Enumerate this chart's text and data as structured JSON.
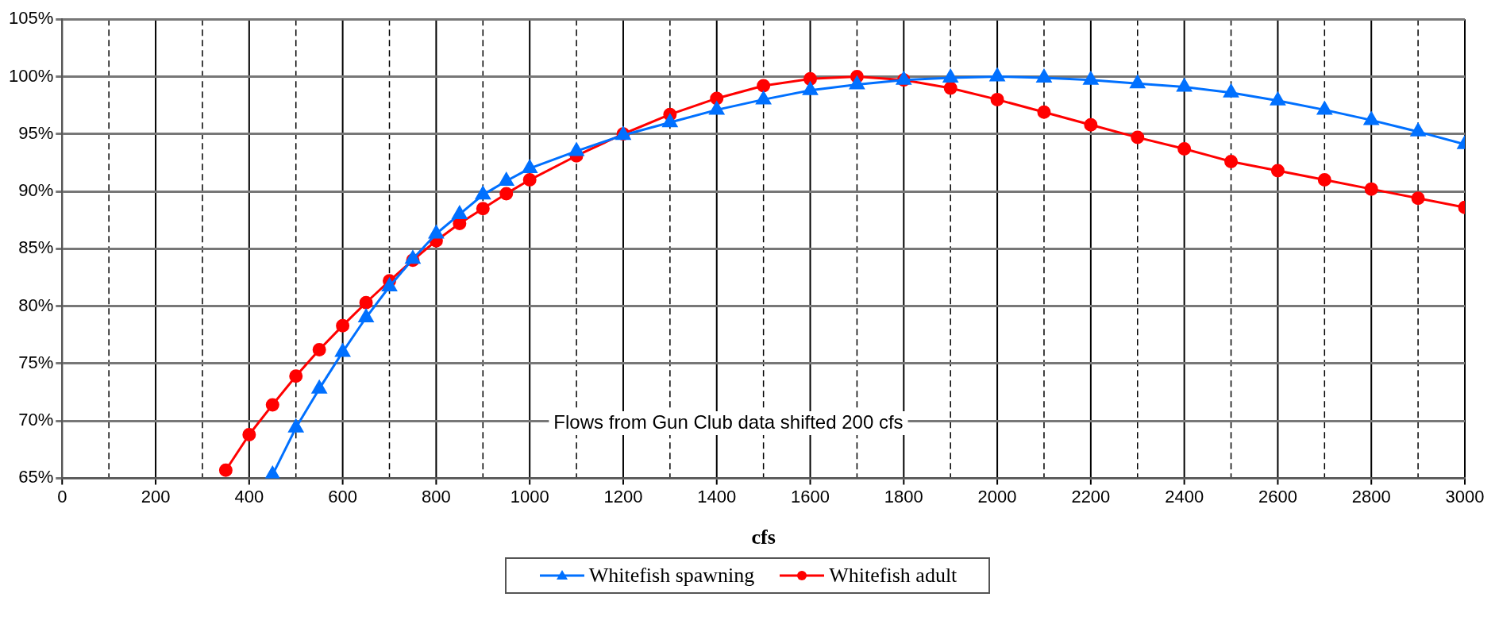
{
  "chart_data": {
    "type": "line",
    "xlabel": "cfs",
    "annotations": [
      "Flows from Gun Club data shifted 200 cfs"
    ],
    "xlim": [
      0,
      3000
    ],
    "xticks": [
      0,
      {
        "value": 100,
        "label": null
      },
      200,
      {
        "value": 300,
        "label": null
      },
      400,
      {
        "value": 500,
        "label": null
      },
      600,
      {
        "value": 700,
        "label": null
      },
      800,
      {
        "value": 900,
        "label": null
      },
      1000,
      {
        "value": 1100,
        "label": null
      },
      1200,
      {
        "value": 1300,
        "label": null
      },
      1400,
      {
        "value": 1500,
        "label": null
      },
      1600,
      {
        "value": 1700,
        "label": null
      },
      1800,
      {
        "value": 1900,
        "label": null
      },
      2000,
      {
        "value": 2100,
        "label": null
      },
      2200,
      {
        "value": 2300,
        "label": null
      },
      2400,
      {
        "value": 2500,
        "label": null
      },
      2600,
      {
        "value": 2700,
        "label": null
      },
      2800,
      {
        "value": 2900,
        "label": null
      },
      3000
    ],
    "ylim": [
      65,
      105
    ],
    "yticks": [
      {
        "value": 65,
        "label": "65%"
      },
      {
        "value": 70,
        "label": "70%"
      },
      {
        "value": 75,
        "label": "75%"
      },
      {
        "value": 80,
        "label": "80%"
      },
      {
        "value": 85,
        "label": "85%"
      },
      {
        "value": 90,
        "label": "90%"
      },
      {
        "value": 95,
        "label": "95%"
      },
      {
        "value": 100,
        "label": "100%"
      },
      {
        "value": 105,
        "label": "105%"
      }
    ],
    "grid": true,
    "legend": "bottom",
    "line_style": "solid",
    "series": [
      {
        "name": "Whitefish spawning",
        "color": "#0070ff",
        "marker": "triangle",
        "x": [
          450,
          500,
          550,
          600,
          650,
          700,
          750,
          800,
          850,
          900,
          950,
          1000,
          1100,
          1200,
          1300,
          1400,
          1500,
          1600,
          1700,
          1800,
          1900,
          2000,
          2100,
          2200,
          2300,
          2400,
          2500,
          2600,
          2700,
          2800,
          2900,
          3000
        ],
        "values": [
          65.3,
          69.4,
          72.8,
          76,
          79,
          81.7,
          84.1,
          86.3,
          88,
          89.7,
          90.9,
          92,
          93.5,
          94.9,
          96,
          97.1,
          98,
          98.8,
          99.3,
          99.7,
          99.9,
          100,
          99.9,
          99.7,
          99.4,
          99.1,
          98.6,
          97.9,
          97.1,
          96.2,
          95.2,
          94.1
        ]
      },
      {
        "name": "Whitefish adult",
        "color": "#ff0000",
        "marker": "circle",
        "x": [
          350,
          400,
          450,
          500,
          550,
          600,
          650,
          700,
          750,
          800,
          850,
          900,
          950,
          1000,
          1100,
          1200,
          1300,
          1400,
          1500,
          1600,
          1700,
          1800,
          1900,
          2000,
          2100,
          2200,
          2300,
          2400,
          2500,
          2600,
          2700,
          2800,
          2900,
          3000
        ],
        "values": [
          65.7,
          68.8,
          71.4,
          73.9,
          76.2,
          78.3,
          80.3,
          82.2,
          84,
          85.7,
          87.2,
          88.5,
          89.8,
          91,
          93.1,
          95,
          96.7,
          98.1,
          99.2,
          99.8,
          100,
          99.7,
          99,
          98,
          96.9,
          95.8,
          94.7,
          93.7,
          92.6,
          91.8,
          91,
          90.2,
          89.4,
          88.6
        ]
      }
    ]
  }
}
